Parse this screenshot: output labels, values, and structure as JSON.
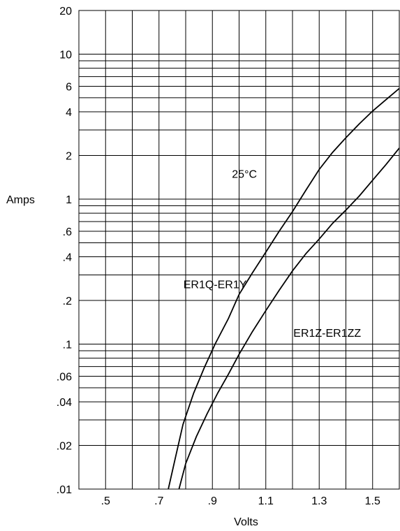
{
  "chart_data": {
    "type": "line",
    "xlabel": "Volts",
    "ylabel": "Amps",
    "xscale": "linear",
    "yscale": "log",
    "xlim": [
      0.4,
      1.6
    ],
    "ylim": [
      0.01,
      20
    ],
    "grid": true,
    "x_ticks": [
      0.5,
      0.6,
      0.7,
      0.8,
      0.9,
      1.0,
      1.1,
      1.2,
      1.3,
      1.4,
      1.5
    ],
    "x_tick_labels": [
      ".5",
      ".7",
      ".9",
      "1.1",
      "1.3",
      "1.5"
    ],
    "x_tick_label_values": [
      0.5,
      0.7,
      0.9,
      1.1,
      1.3,
      1.5
    ],
    "y_tick_labels": [
      ".01",
      ".02",
      ".04",
      ".06",
      ".1",
      ".2",
      ".4",
      ".6",
      "1",
      "2",
      "4",
      "6",
      "10",
      "20"
    ],
    "y_tick_label_values": [
      0.01,
      0.02,
      0.04,
      0.06,
      0.1,
      0.2,
      0.4,
      0.6,
      1,
      2,
      4,
      6,
      10,
      20
    ],
    "y_gridlines": [
      0.01,
      0.02,
      0.03,
      0.04,
      0.05,
      0.06,
      0.07,
      0.08,
      0.09,
      0.1,
      0.2,
      0.3,
      0.4,
      0.5,
      0.6,
      0.7,
      0.8,
      0.9,
      1,
      2,
      3,
      4,
      5,
      6,
      7,
      8,
      9,
      10,
      20
    ],
    "annotations": [
      {
        "text": "25°C",
        "x": 1.02,
        "y": 1.5
      },
      {
        "text": "ER1Q-ER1Y",
        "x": 0.91,
        "y": 0.26
      },
      {
        "text": "ER1Z-ER1ZZ",
        "x": 1.33,
        "y": 0.12
      }
    ],
    "series": [
      {
        "name": "ER1Q-ER1Y",
        "x": [
          0.735,
          0.76,
          0.79,
          0.83,
          0.87,
          0.91,
          0.96,
          1.0,
          1.05,
          1.1,
          1.15,
          1.2,
          1.25,
          1.3,
          1.35,
          1.4,
          1.45,
          1.5,
          1.55,
          1.6
        ],
        "y": [
          0.01,
          0.016,
          0.028,
          0.046,
          0.069,
          0.1,
          0.15,
          0.22,
          0.31,
          0.43,
          0.6,
          0.82,
          1.15,
          1.6,
          2.1,
          2.65,
          3.3,
          4.05,
          4.85,
          5.8
        ]
      },
      {
        "name": "ER1Z-ER1ZZ",
        "x": [
          0.775,
          0.8,
          0.84,
          0.88,
          0.92,
          0.96,
          1.0,
          1.05,
          1.1,
          1.15,
          1.2,
          1.25,
          1.3,
          1.35,
          1.4,
          1.45,
          1.5,
          1.55,
          1.6
        ],
        "y": [
          0.01,
          0.015,
          0.023,
          0.033,
          0.046,
          0.062,
          0.085,
          0.122,
          0.17,
          0.235,
          0.32,
          0.42,
          0.53,
          0.68,
          0.84,
          1.05,
          1.35,
          1.73,
          2.25
        ]
      }
    ]
  }
}
